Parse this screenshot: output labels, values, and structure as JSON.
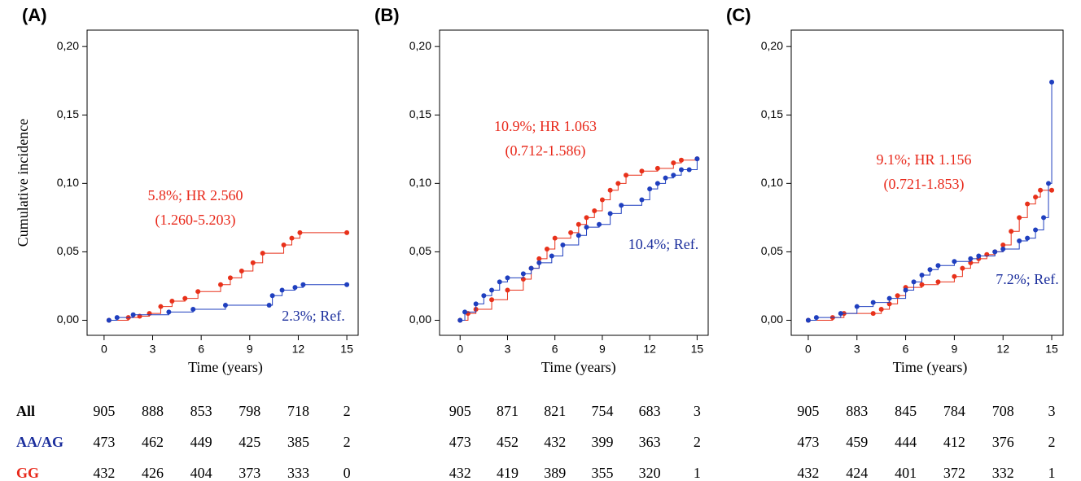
{
  "risk_labels": [
    {
      "text": "All",
      "color": "#000000"
    },
    {
      "text": "AA/AG",
      "color": "#1a2d9c"
    },
    {
      "text": "GG",
      "color": "#e8281a"
    }
  ],
  "chart_data": [
    {
      "type": "line",
      "panel_label": "(A)",
      "y_label": "Cumulative incidence",
      "x_label": "Time (years)",
      "xlim": [
        -1.05,
        15.7
      ],
      "ylim": [
        -0.011,
        0.212
      ],
      "xticks": [
        0,
        3,
        6,
        9,
        12,
        15
      ],
      "yticks": [
        {
          "value": 0,
          "label": "0,00"
        },
        {
          "value": 0.05,
          "label": "0,05"
        },
        {
          "value": 0.1,
          "label": "0,10"
        },
        {
          "value": 0.15,
          "label": "0,15"
        },
        {
          "value": 0.2,
          "label": "0,20"
        }
      ],
      "series": [
        {
          "color": "#e8311a",
          "x": [
            0.3,
            1.5,
            2.2,
            2.8,
            3.5,
            4.2,
            5,
            5.8,
            7.2,
            7.8,
            8.5,
            9.2,
            9.8,
            11.1,
            11.6,
            12.1,
            15
          ],
          "values": [
            0,
            0.002,
            0.003,
            0.005,
            0.01,
            0.014,
            0.016,
            0.021,
            0.026,
            0.031,
            0.036,
            0.042,
            0.049,
            0.055,
            0.06,
            0.064,
            0.064
          ]
        },
        {
          "color": "#1f3fbf",
          "x": [
            0.3,
            0.8,
            1.8,
            4,
            5.5,
            7.5,
            10.2,
            10.4,
            11,
            11.8,
            12.3,
            15
          ],
          "values": [
            0,
            0.002,
            0.004,
            0.006,
            0.008,
            0.011,
            0.011,
            0.018,
            0.022,
            0.024,
            0.026,
            0.026
          ]
        }
      ],
      "annotations": [
        {
          "text": "5.8%; HR 2.560",
          "color": "#e8281a"
        },
        {
          "text": "(1.260-5.203)",
          "color": "#e8281a"
        },
        {
          "text": "2.3%; Ref.",
          "color": "#1a2d9c"
        }
      ],
      "at_risk": [
        [
          905,
          888,
          853,
          798,
          718,
          2
        ],
        [
          473,
          462,
          449,
          425,
          385,
          2
        ],
        [
          432,
          426,
          404,
          373,
          333,
          0
        ]
      ]
    },
    {
      "type": "line",
      "panel_label": "(B)",
      "x_label": "Time (years)",
      "xlim": [
        -1.3,
        15.7
      ],
      "ylim": [
        -0.011,
        0.212
      ],
      "xticks": [
        0,
        3,
        6,
        9,
        12,
        15
      ],
      "yticks": [
        {
          "value": 0,
          "label": "0,00"
        },
        {
          "value": 0.05,
          "label": "0,05"
        },
        {
          "value": 0.1,
          "label": "0,10"
        },
        {
          "value": 0.15,
          "label": "0,15"
        },
        {
          "value": 0.2,
          "label": "0,20"
        }
      ],
      "series": [
        {
          "color": "#e8311a",
          "x": [
            0,
            0.5,
            1,
            2,
            3,
            4,
            4.5,
            5,
            5.5,
            6,
            7,
            7.5,
            8,
            8.5,
            9,
            9.5,
            10,
            10.5,
            11.5,
            12.5,
            13.5,
            14,
            15
          ],
          "values": [
            0,
            0.005,
            0.008,
            0.015,
            0.022,
            0.03,
            0.038,
            0.045,
            0.052,
            0.06,
            0.064,
            0.07,
            0.075,
            0.08,
            0.088,
            0.095,
            0.1,
            0.106,
            0.109,
            0.111,
            0.115,
            0.117,
            0.118
          ]
        },
        {
          "color": "#1f3fbf",
          "x": [
            0,
            0.3,
            1,
            1.5,
            2,
            2.5,
            3,
            4,
            4.5,
            5,
            5.8,
            6.5,
            7.5,
            8,
            8.8,
            9.5,
            10.2,
            11.5,
            12,
            12.5,
            13,
            13.5,
            14,
            14.5,
            15
          ],
          "values": [
            0,
            0.006,
            0.012,
            0.018,
            0.022,
            0.028,
            0.031,
            0.034,
            0.038,
            0.042,
            0.047,
            0.055,
            0.062,
            0.068,
            0.07,
            0.078,
            0.084,
            0.088,
            0.096,
            0.1,
            0.104,
            0.106,
            0.11,
            0.11,
            0.118
          ]
        }
      ],
      "annotations": [
        {
          "text": "10.9%; HR 1.063",
          "color": "#e8281a"
        },
        {
          "text": "(0.712-1.586)",
          "color": "#e8281a"
        },
        {
          "text": "10.4%; Ref.",
          "color": "#1a2d9c"
        }
      ],
      "at_risk": [
        [
          905,
          871,
          821,
          754,
          683,
          3
        ],
        [
          473,
          452,
          432,
          399,
          363,
          2
        ],
        [
          432,
          419,
          389,
          355,
          320,
          1
        ]
      ]
    },
    {
      "type": "line",
      "panel_label": "(C)",
      "x_label": "Time (years)",
      "xlim": [
        -1.05,
        15.7
      ],
      "ylim": [
        -0.011,
        0.212
      ],
      "xticks": [
        0,
        3,
        6,
        9,
        12,
        15
      ],
      "yticks": [
        {
          "value": 0,
          "label": "0,00"
        },
        {
          "value": 0.05,
          "label": "0,05"
        },
        {
          "value": 0.1,
          "label": "0,10"
        },
        {
          "value": 0.15,
          "label": "0,15"
        },
        {
          "value": 0.2,
          "label": "0,20"
        }
      ],
      "series": [
        {
          "color": "#e8311a",
          "x": [
            0,
            1.5,
            2.2,
            4,
            4.5,
            5,
            5.5,
            6,
            7,
            8,
            9,
            9.5,
            10,
            10.5,
            11,
            11.5,
            12,
            12.5,
            13,
            13.5,
            14,
            14.3,
            15
          ],
          "values": [
            0,
            0.002,
            0.005,
            0.005,
            0.008,
            0.012,
            0.018,
            0.024,
            0.026,
            0.028,
            0.032,
            0.038,
            0.042,
            0.045,
            0.048,
            0.05,
            0.055,
            0.065,
            0.075,
            0.085,
            0.09,
            0.095,
            0.095
          ]
        },
        {
          "color": "#1f3fbf",
          "x": [
            0,
            0.5,
            2,
            3,
            4,
            5,
            6,
            6.5,
            7,
            7.5,
            8,
            9,
            10,
            10.5,
            11.5,
            12,
            13,
            13.5,
            14,
            14.5,
            14.8,
            15
          ],
          "values": [
            0,
            0.002,
            0.005,
            0.01,
            0.013,
            0.016,
            0.022,
            0.028,
            0.033,
            0.037,
            0.04,
            0.043,
            0.045,
            0.047,
            0.05,
            0.052,
            0.058,
            0.06,
            0.066,
            0.075,
            0.1,
            0.174
          ]
        }
      ],
      "annotations": [
        {
          "text": "9.1%; HR 1.156",
          "color": "#e8281a"
        },
        {
          "text": "(0.721-1.853)",
          "color": "#e8281a"
        },
        {
          "text": "7.2%; Ref.",
          "color": "#1a2d9c"
        }
      ],
      "at_risk": [
        [
          905,
          883,
          845,
          784,
          708,
          3
        ],
        [
          473,
          459,
          444,
          412,
          376,
          2
        ],
        [
          432,
          424,
          401,
          372,
          332,
          1
        ]
      ]
    }
  ]
}
